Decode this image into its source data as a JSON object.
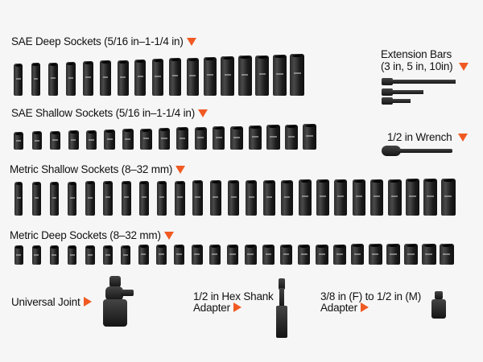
{
  "sections": {
    "sae_deep": {
      "label": "SAE Deep Sockets (5/16 in–1-1/4 in)",
      "count": 17
    },
    "sae_shallow": {
      "label": "SAE Shallow Sockets (5/16 in–1-1/4 in)",
      "count": 17
    },
    "metric_shallow": {
      "label": "Metric Shallow Sockets (8–32 mm)",
      "count": 25
    },
    "metric_deep": {
      "label": "Metric Deep Sockets (8–32 mm)",
      "count": 25
    },
    "extension_bars": {
      "line1": "Extension Bars",
      "line2": "(3 in, 5 in, 10in)"
    },
    "wrench": {
      "label": "1/2 in Wrench"
    },
    "universal_joint": {
      "label": "Universal Joint"
    },
    "hex_shank": {
      "line1": "1/2 in Hex Shank",
      "line2": "Adapter"
    },
    "adapter": {
      "line1": "3/8 in (F) to 1/2 in (M)",
      "line2": "Adapter"
    }
  },
  "colors": {
    "accent": "#f05a22",
    "socket": "#1b1b1b",
    "background": "#f6f6f6"
  }
}
